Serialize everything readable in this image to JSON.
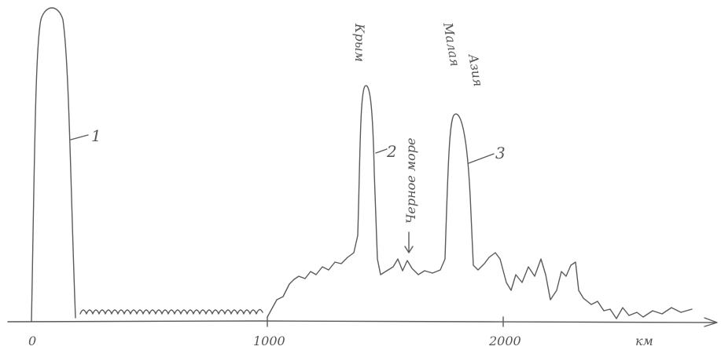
{
  "axis": {
    "ticks": [
      "0",
      "1000",
      "2000"
    ],
    "unit": "км"
  },
  "peaks": [
    {
      "label": "1"
    },
    {
      "label": "2"
    },
    {
      "label": "3"
    }
  ],
  "annotations": {
    "crimea": "Крым",
    "sea": "Черное море",
    "asia": [
      "Малая",
      "Азия"
    ]
  }
}
